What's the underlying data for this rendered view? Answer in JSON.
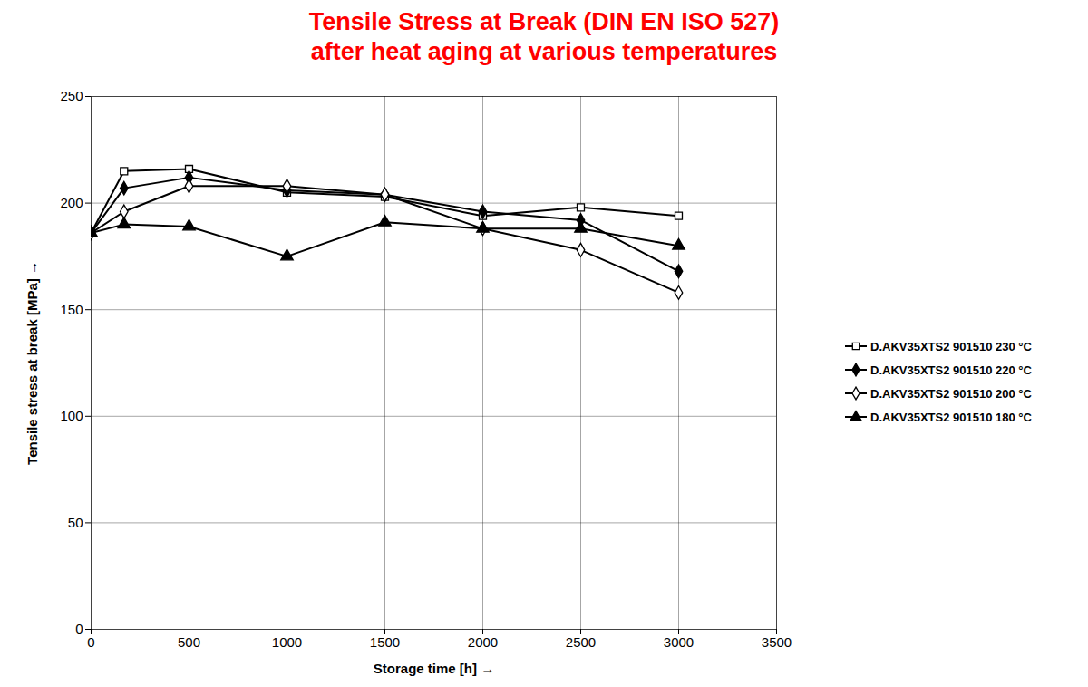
{
  "chart_data": {
    "type": "line",
    "title": "Tensile Stress at Break (DIN EN ISO 527)",
    "subtitle": "after heat aging at various temperatures",
    "x_label": "Storage time [h]",
    "y_label": "Tensile stress at break [MPa]",
    "x": [
      0,
      168,
      500,
      1000,
      1500,
      2000,
      2500,
      3000
    ],
    "series": [
      {
        "name": "D.AKV35XTS2 901510 230 °C",
        "color": "#000000",
        "marker": "open-square",
        "values": [
          186,
          215,
          216,
          205,
          203,
          194,
          198,
          194
        ]
      },
      {
        "name": "D.AKV35XTS2 901510 220 °C",
        "color": "#000000",
        "marker": "filled-diamond",
        "values": [
          186,
          207,
          212,
          206,
          204,
          196,
          192,
          168
        ]
      },
      {
        "name": "D.AKV35XTS2 901510 200 °C",
        "color": "#000000",
        "marker": "open-diamond",
        "values": [
          186,
          196,
          208,
          208,
          204,
          188,
          178,
          158
        ]
      },
      {
        "name": "D.AKV35XTS2 901510 180 °C",
        "color": "#000000",
        "marker": "filled-triangle",
        "values": [
          186,
          190,
          189,
          175,
          191,
          188,
          188,
          180
        ]
      }
    ],
    "xlim": [
      0,
      3500
    ],
    "xticks": [
      0,
      500,
      1000,
      1500,
      2000,
      2500,
      3000,
      3500
    ],
    "ylim": [
      0,
      250
    ],
    "yticks": [
      0,
      50,
      100,
      150,
      200,
      250
    ],
    "grid": true,
    "legend": "right"
  }
}
